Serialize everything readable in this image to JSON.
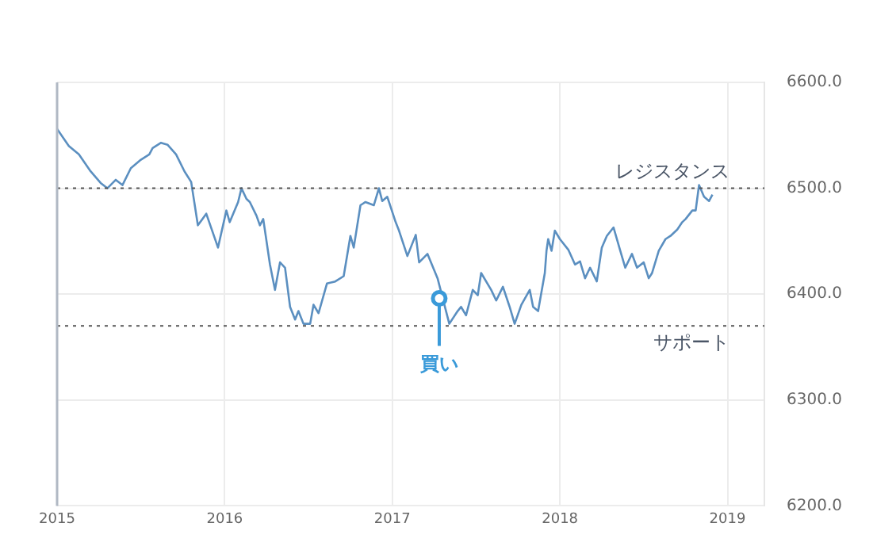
{
  "chart_data": {
    "type": "line",
    "grid": true,
    "legend": false,
    "marker": "none",
    "line_style": "solid",
    "xlim": [
      2015,
      2019.22
    ],
    "xticks": [
      2015,
      2016,
      2017,
      2018,
      2019
    ],
    "ylim": [
      6200,
      6600
    ],
    "yticks": [
      {
        "value": 6200,
        "label": "6200.0"
      },
      {
        "value": 6300,
        "label": "6300.0"
      },
      {
        "value": 6400,
        "label": "6400.0"
      },
      {
        "value": 6500,
        "label": "6500.0"
      },
      {
        "value": 6600,
        "label": "6600.0"
      }
    ],
    "x": [
      2015.0,
      2015.07,
      2015.13,
      2015.2,
      2015.26,
      2015.3,
      2015.35,
      2015.39,
      2015.44,
      2015.5,
      2015.55,
      2015.57,
      2015.62,
      2015.66,
      2015.71,
      2015.76,
      2015.8,
      2015.84,
      2015.89,
      2015.96,
      2016.01,
      2016.03,
      2016.08,
      2016.1,
      2016.13,
      2016.15,
      2016.19,
      2016.21,
      2016.23,
      2016.27,
      2016.3,
      2016.33,
      2016.36,
      2016.39,
      2016.42,
      2016.44,
      2016.47,
      2016.51,
      2016.53,
      2016.56,
      2016.61,
      2016.66,
      2016.71,
      2016.75,
      2016.77,
      2016.81,
      2016.84,
      2016.89,
      2016.92,
      2016.94,
      2016.97,
      2017.02,
      2017.04,
      2017.09,
      2017.14,
      2017.16,
      2017.21,
      2017.27,
      2017.34,
      2017.39,
      2017.41,
      2017.44,
      2017.48,
      2017.51,
      2017.53,
      2017.59,
      2017.62,
      2017.66,
      2017.7,
      2017.73,
      2017.77,
      2017.82,
      2017.84,
      2017.87,
      2017.91,
      2017.92,
      2017.93,
      2017.95,
      2017.97,
      2018.0,
      2018.05,
      2018.09,
      2018.12,
      2018.15,
      2018.18,
      2018.22,
      2018.25,
      2018.28,
      2018.32,
      2018.36,
      2018.39,
      2018.43,
      2018.46,
      2018.5,
      2018.53,
      2018.55,
      2018.59,
      2018.63,
      2018.66,
      2018.7,
      2018.73,
      2018.75,
      2018.79,
      2018.81,
      2018.83,
      2018.86,
      2018.89,
      2018.91
    ],
    "series": [
      {
        "color": "#5b8fc0",
        "values": [
          6556,
          6540,
          6532,
          6516,
          6505,
          6500,
          6508,
          6503,
          6519,
          6527,
          6532,
          6538,
          6543,
          6541,
          6532,
          6516,
          6506,
          6465,
          6476,
          6444,
          6479,
          6468,
          6487,
          6500,
          6490,
          6487,
          6474,
          6465,
          6471,
          6428,
          6404,
          6430,
          6425,
          6388,
          6376,
          6384,
          6372,
          6372,
          6390,
          6382,
          6410,
          6412,
          6417,
          6455,
          6444,
          6484,
          6487,
          6484,
          6500,
          6488,
          6492,
          6468,
          6460,
          6436,
          6456,
          6430,
          6438,
          6415,
          6372,
          6384,
          6388,
          6380,
          6404,
          6399,
          6420,
          6404,
          6394,
          6407,
          6388,
          6372,
          6390,
          6404,
          6388,
          6384,
          6420,
          6441,
          6452,
          6441,
          6460,
          6452,
          6442,
          6428,
          6431,
          6415,
          6425,
          6412,
          6444,
          6455,
          6463,
          6441,
          6425,
          6438,
          6425,
          6430,
          6415,
          6420,
          6441,
          6452,
          6455,
          6461,
          6468,
          6471,
          6479,
          6479,
          6503,
          6492,
          6488,
          6494
        ]
      }
    ],
    "ref_lines": [
      {
        "axis": "y",
        "value": 6500,
        "label": "レジスタンス",
        "color": "#555555",
        "line_style": "dotted"
      },
      {
        "axis": "y",
        "value": 6370,
        "label": "サポート",
        "color": "#555555",
        "line_style": "dotted"
      }
    ],
    "annotations": [
      {
        "text": "買い",
        "x": 2017.28,
        "y": 6396
      }
    ]
  }
}
